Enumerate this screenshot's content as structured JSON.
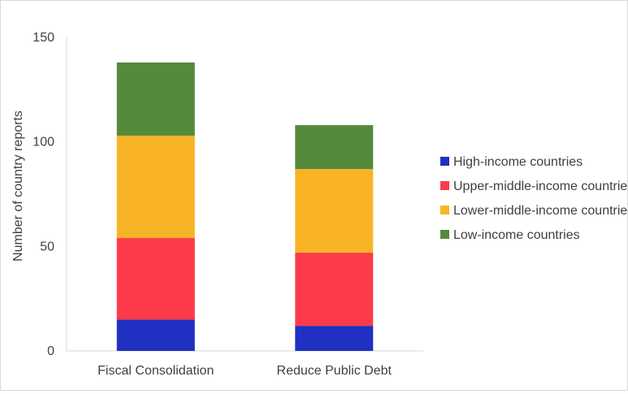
{
  "chart_data": {
    "type": "bar",
    "stacked": true,
    "categories": [
      "Fiscal Consolidation",
      "Reduce Public Debt"
    ],
    "series": [
      {
        "name": "High-income countries",
        "color": "#1f30c2",
        "values": [
          15,
          12
        ]
      },
      {
        "name": "Upper-middle-income countries",
        "color": "#fc3a4a",
        "values": [
          39,
          35
        ]
      },
      {
        "name": "Lower-middle-income countries",
        "color": "#f9b327",
        "values": [
          49,
          40
        ]
      },
      {
        "name": "Low-income countries",
        "color": "#548a3c",
        "values": [
          35,
          21
        ]
      }
    ],
    "ylabel": "Number of country reports",
    "xlabel": "",
    "ylim": [
      0,
      150
    ],
    "yticks": [
      0,
      50,
      100,
      150
    ],
    "grid": false,
    "legend_position": "right"
  }
}
